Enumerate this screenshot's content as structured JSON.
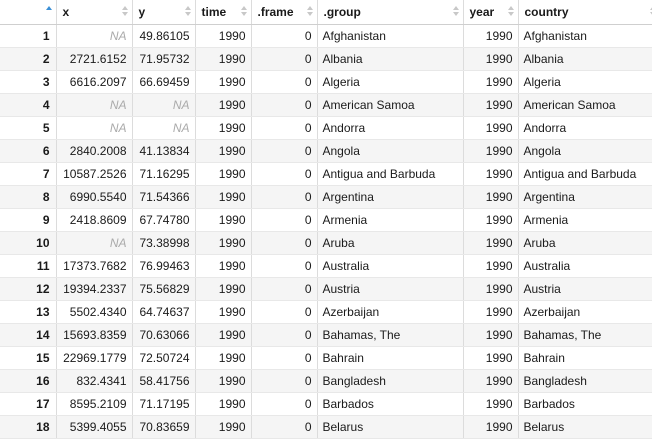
{
  "columns": [
    {
      "label": "",
      "sort": "asc",
      "align": "right"
    },
    {
      "label": "x",
      "sort": "none",
      "align": "right"
    },
    {
      "label": "y",
      "sort": "none",
      "align": "right"
    },
    {
      "label": "time",
      "sort": "none",
      "align": "right"
    },
    {
      "label": ".frame",
      "sort": "none",
      "align": "right"
    },
    {
      "label": ".group",
      "sort": "none",
      "align": "left"
    },
    {
      "label": "year",
      "sort": "none",
      "align": "right"
    },
    {
      "label": "country",
      "sort": "none",
      "align": "left"
    }
  ],
  "rows": [
    [
      "1",
      "NA",
      "49.86105",
      "1990",
      "0",
      "Afghanistan",
      "1990",
      "Afghanistan"
    ],
    [
      "2",
      "2721.6152",
      "71.95732",
      "1990",
      "0",
      "Albania",
      "1990",
      "Albania"
    ],
    [
      "3",
      "6616.2097",
      "66.69459",
      "1990",
      "0",
      "Algeria",
      "1990",
      "Algeria"
    ],
    [
      "4",
      "NA",
      "NA",
      "1990",
      "0",
      "American Samoa",
      "1990",
      "American Samoa"
    ],
    [
      "5",
      "NA",
      "NA",
      "1990",
      "0",
      "Andorra",
      "1990",
      "Andorra"
    ],
    [
      "6",
      "2840.2008",
      "41.13834",
      "1990",
      "0",
      "Angola",
      "1990",
      "Angola"
    ],
    [
      "7",
      "10587.2526",
      "71.16295",
      "1990",
      "0",
      "Antigua and Barbuda",
      "1990",
      "Antigua and Barbuda"
    ],
    [
      "8",
      "6990.5540",
      "71.54366",
      "1990",
      "0",
      "Argentina",
      "1990",
      "Argentina"
    ],
    [
      "9",
      "2418.8609",
      "67.74780",
      "1990",
      "0",
      "Armenia",
      "1990",
      "Armenia"
    ],
    [
      "10",
      "NA",
      "73.38998",
      "1990",
      "0",
      "Aruba",
      "1990",
      "Aruba"
    ],
    [
      "11",
      "17373.7682",
      "76.99463",
      "1990",
      "0",
      "Australia",
      "1990",
      "Australia"
    ],
    [
      "12",
      "19394.2337",
      "75.56829",
      "1990",
      "0",
      "Austria",
      "1990",
      "Austria"
    ],
    [
      "13",
      "5502.4340",
      "64.74637",
      "1990",
      "0",
      "Azerbaijan",
      "1990",
      "Azerbaijan"
    ],
    [
      "14",
      "15693.8359",
      "70.63066",
      "1990",
      "0",
      "Bahamas, The",
      "1990",
      "Bahamas, The"
    ],
    [
      "15",
      "22969.1779",
      "72.50724",
      "1990",
      "0",
      "Bahrain",
      "1990",
      "Bahrain"
    ],
    [
      "16",
      "832.4341",
      "58.41756",
      "1990",
      "0",
      "Bangladesh",
      "1990",
      "Bangladesh"
    ],
    [
      "17",
      "8595.2109",
      "71.17195",
      "1990",
      "0",
      "Barbados",
      "1990",
      "Barbados"
    ],
    [
      "18",
      "5399.4055",
      "70.83659",
      "1990",
      "0",
      "Belarus",
      "1990",
      "Belarus"
    ]
  ]
}
